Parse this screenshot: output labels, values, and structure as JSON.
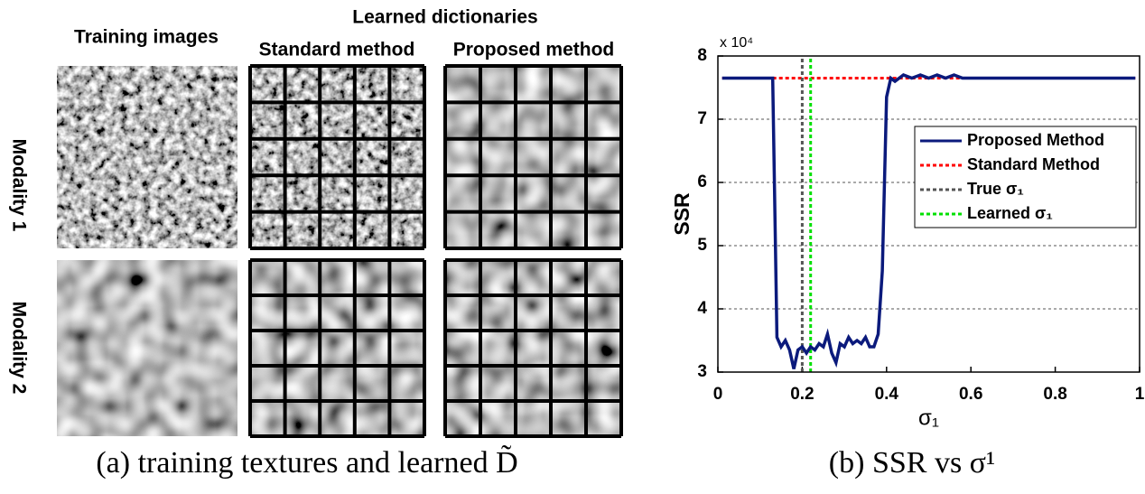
{
  "panel_a": {
    "heading": "Learned dictionaries",
    "columns": [
      "Training images",
      "Standard method",
      "Proposed method"
    ],
    "rows": [
      "Modality 1",
      "Modality 2"
    ],
    "caption": "(a) training textures and learned D̃"
  },
  "chart_data": {
    "type": "line",
    "caption": "(b) SSR vs σ¹",
    "xlabel": "σ₁",
    "ylabel": "SSR",
    "y_multiplier": "x 10⁴",
    "xlim": [
      0,
      1
    ],
    "xticks": [
      0,
      0.2,
      0.4,
      0.6,
      0.8,
      1
    ],
    "ylim": [
      3,
      8
    ],
    "yticks": [
      3,
      4,
      5,
      6,
      7,
      8
    ],
    "grid": "y",
    "legend": "upper right",
    "series": [
      {
        "name": "Proposed Method",
        "color": "#0b1a7c",
        "style": "solid",
        "x": [
          0.01,
          0.13,
          0.14,
          0.15,
          0.16,
          0.17,
          0.18,
          0.19,
          0.2,
          0.21,
          0.22,
          0.23,
          0.24,
          0.25,
          0.26,
          0.27,
          0.28,
          0.29,
          0.3,
          0.31,
          0.32,
          0.33,
          0.34,
          0.35,
          0.36,
          0.37,
          0.38,
          0.39,
          0.4,
          0.41,
          0.42,
          0.44,
          0.46,
          0.48,
          0.5,
          0.52,
          0.54,
          0.56,
          0.58,
          0.99
        ],
        "values": [
          7.65,
          7.65,
          3.55,
          3.4,
          3.5,
          3.35,
          3.05,
          3.35,
          3.4,
          3.3,
          3.4,
          3.35,
          3.45,
          3.4,
          3.6,
          3.3,
          3.15,
          3.45,
          3.4,
          3.55,
          3.45,
          3.5,
          3.45,
          3.55,
          3.4,
          3.4,
          3.6,
          4.6,
          7.35,
          7.65,
          7.6,
          7.7,
          7.65,
          7.7,
          7.65,
          7.7,
          7.65,
          7.7,
          7.65,
          7.65
        ]
      },
      {
        "name": "Standard Method",
        "color": "#ff0000",
        "style": "dotted",
        "x": [
          0.01,
          0.99
        ],
        "values": [
          7.65,
          7.65
        ]
      },
      {
        "name": "True σ₁",
        "color": "#555555",
        "style": "dotted",
        "x": [
          0.2,
          0.2
        ],
        "values": [
          3,
          8
        ]
      },
      {
        "name": "Learned σ₁",
        "color": "#00e000",
        "style": "dotted",
        "x": [
          0.22,
          0.22
        ],
        "values": [
          3,
          8
        ]
      }
    ]
  }
}
